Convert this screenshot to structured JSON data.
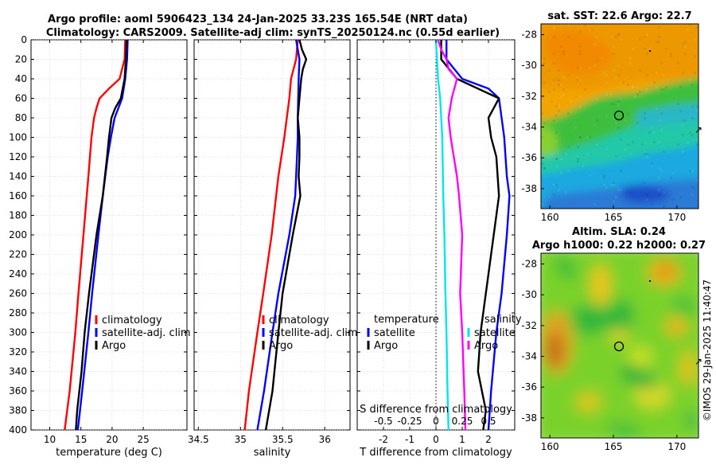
{
  "title": {
    "line1": "Argo profile: aoml 5906423_134 24-Jan-2025 33.23S 165.54E (NRT data)",
    "line2": "Climatology: CARS2009. Satellite-adj clim: synTS_20250124.nc (0.55d earlier)"
  },
  "stamp": "©IMOS 29-Jan-2025 11:40:47",
  "colors": {
    "clim": "#ff0000",
    "sat": "#0000ff",
    "argo": "#000000",
    "sat_s": "#00e5ee",
    "argo_s": "#ff00ff"
  },
  "chart_data": [
    {
      "id": "temperature",
      "type": "line",
      "xlabel": "temperature (deg C)",
      "ylabel": "",
      "xlim": [
        7,
        32
      ],
      "ylim": [
        400,
        0
      ],
      "xticks": [
        10,
        15,
        20,
        25
      ],
      "yticks": [
        0,
        20,
        40,
        60,
        80,
        100,
        120,
        140,
        160,
        180,
        200,
        220,
        240,
        260,
        280,
        300,
        320,
        340,
        360,
        380,
        400
      ],
      "legend": [
        "climatology",
        "satellite-adj. clim",
        "Argo"
      ],
      "series": [
        {
          "name": "climatology",
          "color": "#ff0000",
          "depth": [
            0,
            20,
            40,
            50,
            60,
            70,
            80,
            100,
            140,
            200,
            260,
            300,
            360,
            400
          ],
          "values": [
            22.1,
            22.0,
            21.2,
            19.5,
            18.0,
            17.5,
            17.1,
            16.7,
            16.2,
            15.4,
            14.6,
            14.1,
            13.2,
            12.4
          ]
        },
        {
          "name": "satellite-adj. clim",
          "color": "#0000ff",
          "depth": [
            0,
            20,
            40,
            60,
            80,
            100,
            120,
            140,
            160,
            200,
            260,
            300,
            360,
            400
          ],
          "values": [
            22.5,
            22.4,
            22.1,
            21.6,
            20.4,
            19.8,
            19.3,
            18.9,
            18.5,
            17.8,
            16.8,
            16.2,
            15.2,
            14.5
          ]
        },
        {
          "name": "Argo",
          "color": "#000000",
          "depth": [
            0,
            20,
            40,
            60,
            70,
            80,
            100,
            120,
            160,
            200,
            260,
            300,
            340,
            380,
            400
          ],
          "values": [
            22.3,
            22.2,
            22.0,
            21.4,
            20.5,
            19.9,
            19.5,
            19.2,
            18.5,
            17.5,
            16.3,
            15.6,
            15.1,
            14.4,
            14.2
          ]
        }
      ]
    },
    {
      "id": "salinity",
      "type": "line",
      "xlabel": "salinity",
      "ylabel": "",
      "xlim": [
        34.45,
        36.3
      ],
      "ylim": [
        400,
        0
      ],
      "xticks": [
        34.5,
        35,
        35.5,
        36
      ],
      "xticklabels": [
        "34.5",
        "35",
        "35.5",
        "36"
      ],
      "legend": [
        "climatology",
        "satellite-adj. clim",
        "Argo"
      ],
      "series": [
        {
          "name": "climatology",
          "color": "#ff0000",
          "depth": [
            0,
            20,
            40,
            60,
            80,
            100,
            140,
            200,
            260,
            300,
            360,
            400
          ],
          "values": [
            35.68,
            35.66,
            35.6,
            35.58,
            35.55,
            35.52,
            35.45,
            35.37,
            35.27,
            35.2,
            35.1,
            35.05
          ]
        },
        {
          "name": "satellite-adj. clim",
          "color": "#0000ff",
          "depth": [
            0,
            20,
            40,
            80,
            100,
            120,
            160,
            200,
            260,
            300,
            360,
            400
          ],
          "values": [
            35.66,
            35.7,
            35.69,
            35.68,
            35.68,
            35.67,
            35.65,
            35.58,
            35.45,
            35.38,
            35.28,
            35.2
          ]
        },
        {
          "name": "Argo",
          "color": "#000000",
          "depth": [
            0,
            10,
            20,
            30,
            40,
            60,
            80,
            100,
            120,
            140,
            160,
            200,
            260,
            300,
            360,
            400
          ],
          "values": [
            35.7,
            35.73,
            35.78,
            35.74,
            35.72,
            35.7,
            35.68,
            35.7,
            35.7,
            35.69,
            35.71,
            35.62,
            35.5,
            35.45,
            35.38,
            35.3
          ]
        }
      ]
    },
    {
      "id": "difference",
      "type": "line",
      "xlabel": "T difference from climatology",
      "top_label": "S difference from climatology",
      "xlim": [
        -3,
        3
      ],
      "ylim": [
        400,
        0
      ],
      "xticks": [
        -2,
        -1,
        0,
        1,
        2
      ],
      "top_xlim": [
        -0.75,
        0.75
      ],
      "top_xticks": [
        -0.5,
        -0.25,
        0,
        0.25,
        0.5
      ],
      "top_xticklabels": [
        "-0.5",
        "-0.25",
        "0",
        "0.25",
        "0.5"
      ],
      "legend_titles": [
        "temperature",
        "salinity"
      ],
      "legend_temperature": [
        "satellite",
        "Argo"
      ],
      "legend_salinity": [
        "satellite",
        "Argo"
      ],
      "series": [
        {
          "name": "T satellite",
          "axis": "T",
          "color": "#0000ff",
          "depth": [
            0,
            20,
            40,
            50,
            60,
            80,
            100,
            140,
            160,
            200,
            260,
            300,
            360,
            400
          ],
          "values": [
            0.4,
            0.4,
            1.0,
            2.0,
            2.4,
            2.5,
            2.6,
            2.7,
            2.8,
            2.7,
            2.5,
            2.3,
            2.1,
            2.0
          ]
        },
        {
          "name": "T Argo",
          "axis": "T",
          "color": "#000000",
          "depth": [
            0,
            20,
            40,
            50,
            60,
            70,
            80,
            100,
            120,
            160,
            200,
            260,
            300,
            340,
            380,
            400
          ],
          "values": [
            0.2,
            0.2,
            0.8,
            1.6,
            2.4,
            2.2,
            2.0,
            2.1,
            2.3,
            2.4,
            2.2,
            1.9,
            1.7,
            1.6,
            1.9,
            1.8
          ]
        },
        {
          "name": "S satellite",
          "axis": "S",
          "color": "#00e5ee",
          "depth": [
            0,
            20,
            40,
            60,
            100,
            160,
            200,
            260,
            300,
            360,
            400
          ],
          "values": [
            0.0,
            0.01,
            0.02,
            0.04,
            0.06,
            0.07,
            0.08,
            0.09,
            0.1,
            0.11,
            0.12
          ]
        },
        {
          "name": "S Argo",
          "axis": "S",
          "color": "#ff00ff",
          "depth": [
            0,
            10,
            20,
            30,
            40,
            60,
            80,
            100,
            140,
            160,
            200,
            260,
            300,
            360,
            400
          ],
          "values": [
            0.02,
            0.05,
            0.1,
            0.12,
            0.2,
            0.15,
            0.12,
            0.14,
            0.2,
            0.22,
            0.25,
            0.23,
            0.25,
            0.27,
            0.28
          ]
        }
      ]
    }
  ],
  "maps": [
    {
      "id": "sst",
      "title": "sat. SST: 22.6 Argo: 22.7",
      "subtitle": "",
      "type": "heatmap",
      "xlim": [
        159.3,
        171.7
      ],
      "ylim": [
        -39.3,
        -27.3
      ],
      "xticks": [
        160,
        165,
        170
      ],
      "yticks": [
        -28,
        -30,
        -32,
        -34,
        -36,
        -38
      ],
      "float_position": {
        "lon": 165.54,
        "lat": -33.23
      }
    },
    {
      "id": "sla",
      "title": "Altim. SLA: 0.24",
      "subtitle": "Argo h1000: 0.22 h2000: 0.27",
      "type": "heatmap",
      "xlim": [
        159.3,
        171.7
      ],
      "ylim": [
        -39.3,
        -27.3
      ],
      "xticks": [
        160,
        165,
        170
      ],
      "yticks": [
        -28,
        -30,
        -32,
        -34,
        -36,
        -38
      ],
      "float_position": {
        "lon": 165.54,
        "lat": -33.23
      }
    }
  ]
}
